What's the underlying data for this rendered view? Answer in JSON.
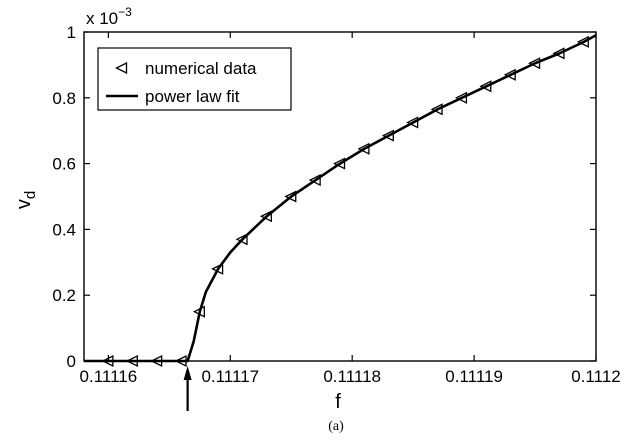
{
  "chart_data": {
    "type": "line",
    "multiplier_label": "x 10",
    "multiplier_exponent": "−3",
    "xlabel": "f",
    "ylabel": "v",
    "ylabel_sub": "d",
    "caption": "(a)",
    "xlim": [
      0.111158,
      0.1112
    ],
    "ylim": [
      0,
      1.0
    ],
    "x_ticks": [
      {
        "value": 0.11116,
        "label": "0.11116"
      },
      {
        "value": 0.11117,
        "label": "0.11117"
      },
      {
        "value": 0.11118,
        "label": "0.11118"
      },
      {
        "value": 0.11119,
        "label": "0.11119"
      },
      {
        "value": 0.1112,
        "label": "0.1112"
      }
    ],
    "y_ticks": [
      {
        "value": 0,
        "label": "0"
      },
      {
        "value": 0.2,
        "label": "0.2"
      },
      {
        "value": 0.4,
        "label": "0.4"
      },
      {
        "value": 0.6,
        "label": "0.6"
      },
      {
        "value": 0.8,
        "label": "0.8"
      },
      {
        "value": 1.0,
        "label": "1"
      }
    ],
    "grid": false,
    "legend_placement": "top-left",
    "series": [
      {
        "name": "numerical data",
        "marker": "triangle-left",
        "x": [
          0.11116,
          0.111162,
          0.111164,
          0.111166,
          0.1111675,
          0.111169,
          0.111171,
          0.111173,
          0.111175,
          0.111177,
          0.111179,
          0.111181,
          0.111183,
          0.111185,
          0.111187,
          0.111189,
          0.111191,
          0.111193,
          0.111195,
          0.111197,
          0.111199
        ],
        "y": [
          0,
          0,
          0,
          0,
          0.15,
          0.28,
          0.37,
          0.44,
          0.5,
          0.55,
          0.6,
          0.645,
          0.685,
          0.725,
          0.765,
          0.8,
          0.835,
          0.87,
          0.905,
          0.935,
          0.97
        ]
      },
      {
        "name": "power law fit",
        "marker": "none",
        "x": [
          0.111158,
          0.1111665,
          0.111167,
          0.1111675,
          0.111168,
          0.111169,
          0.11117,
          0.111171,
          0.111173,
          0.111175,
          0.111177,
          0.111179,
          0.111181,
          0.111183,
          0.111185,
          0.111187,
          0.111189,
          0.111191,
          0.111193,
          0.111195,
          0.111197,
          0.111199,
          0.1112
        ],
        "y": [
          0,
          0,
          0.06,
          0.15,
          0.21,
          0.28,
          0.33,
          0.37,
          0.44,
          0.5,
          0.55,
          0.6,
          0.645,
          0.685,
          0.725,
          0.765,
          0.8,
          0.835,
          0.87,
          0.905,
          0.935,
          0.97,
          0.99
        ]
      }
    ],
    "annotation_arrow_x": 0.1111665
  }
}
